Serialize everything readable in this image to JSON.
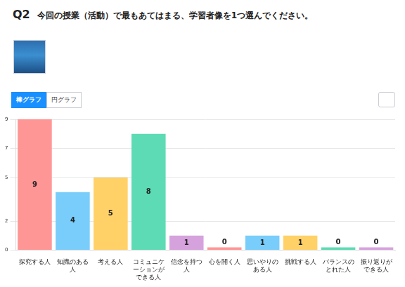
{
  "controls": [
    "棒グラフ",
    "円グラフ"
  ],
  "chart_data": {
    "type": "bar",
    "title": "Q2",
    "subtitle": "今回の授業（活動）で最もあてはまる、学習者像を1つ選んでください。",
    "categories": [
      "探究する人",
      "知識のある人",
      "考える人",
      "コミュニケーションができる人",
      "信念を持つ人",
      "心を開く人",
      "思いやりのある人",
      "挑戦する人",
      "バランスのとれた人",
      "振り返りができる人"
    ],
    "values": [
      9,
      4,
      5,
      8,
      1,
      0,
      1,
      1,
      0,
      0
    ],
    "colors": [
      "#ff9696",
      "#79cdfb",
      "#ffd166",
      "#5cdbb4",
      "#d6a2dd",
      "#ff9696",
      "#79cdfb",
      "#ffd166",
      "#5cdbb4",
      "#d6a2dd"
    ],
    "ylim": [
      0,
      9
    ],
    "yticks": [
      0,
      2,
      5,
      7,
      9
    ],
    "grid": true,
    "data_labels": true
  }
}
